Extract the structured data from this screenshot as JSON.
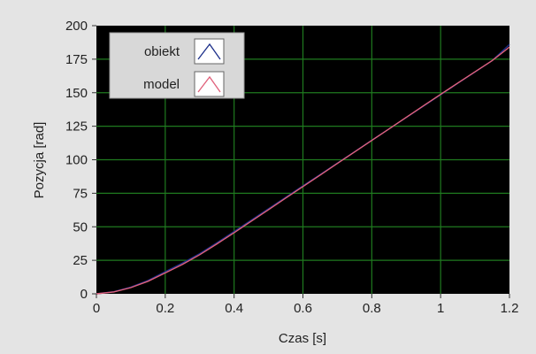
{
  "chart_data": {
    "type": "line",
    "xlabel": "Czas [s]",
    "ylabel": "Pozycja [rad]",
    "xlim": [
      0,
      1.2
    ],
    "ylim": [
      0,
      200
    ],
    "x_ticks": [
      "0",
      "0.2",
      "0.4",
      "0.6",
      "0.8",
      "1",
      "1.2"
    ],
    "y_ticks": [
      "0",
      "25",
      "50",
      "75",
      "100",
      "125",
      "150",
      "175",
      "200"
    ],
    "grid": true,
    "background_color": "#000000",
    "grid_color": "#1f7a1f",
    "legend_position": "top-left",
    "series": [
      {
        "name": "obiekt",
        "color": "#1c2f8a",
        "x": [
          0,
          0.05,
          0.1,
          0.15,
          0.2,
          0.25,
          0.3,
          0.35,
          0.4,
          0.45,
          0.5,
          0.55,
          0.6,
          0.65,
          0.7,
          0.75,
          0.8,
          0.85,
          0.9,
          0.95,
          1.0,
          1.05,
          1.1,
          1.15,
          1.2
        ],
        "values": [
          0,
          1.5,
          5,
          10,
          16.5,
          23,
          30,
          38,
          46.5,
          55,
          63.5,
          72,
          80.5,
          89,
          97.5,
          106,
          114.5,
          123,
          131.5,
          140,
          148.5,
          157,
          165.5,
          174,
          186
        ]
      },
      {
        "name": "model",
        "color": "#e0607a",
        "x": [
          0,
          0.05,
          0.1,
          0.15,
          0.2,
          0.25,
          0.3,
          0.35,
          0.4,
          0.45,
          0.5,
          0.55,
          0.6,
          0.65,
          0.7,
          0.75,
          0.8,
          0.85,
          0.9,
          0.95,
          1.0,
          1.05,
          1.1,
          1.15,
          1.2
        ],
        "values": [
          0,
          1.4,
          4.6,
          9.4,
          15.6,
          22,
          29.2,
          37.2,
          45.6,
          54.2,
          62.8,
          71.4,
          80,
          88.6,
          97.2,
          105.8,
          114.4,
          123,
          131.6,
          140.2,
          148.8,
          157.2,
          165.6,
          174,
          184
        ]
      }
    ]
  }
}
